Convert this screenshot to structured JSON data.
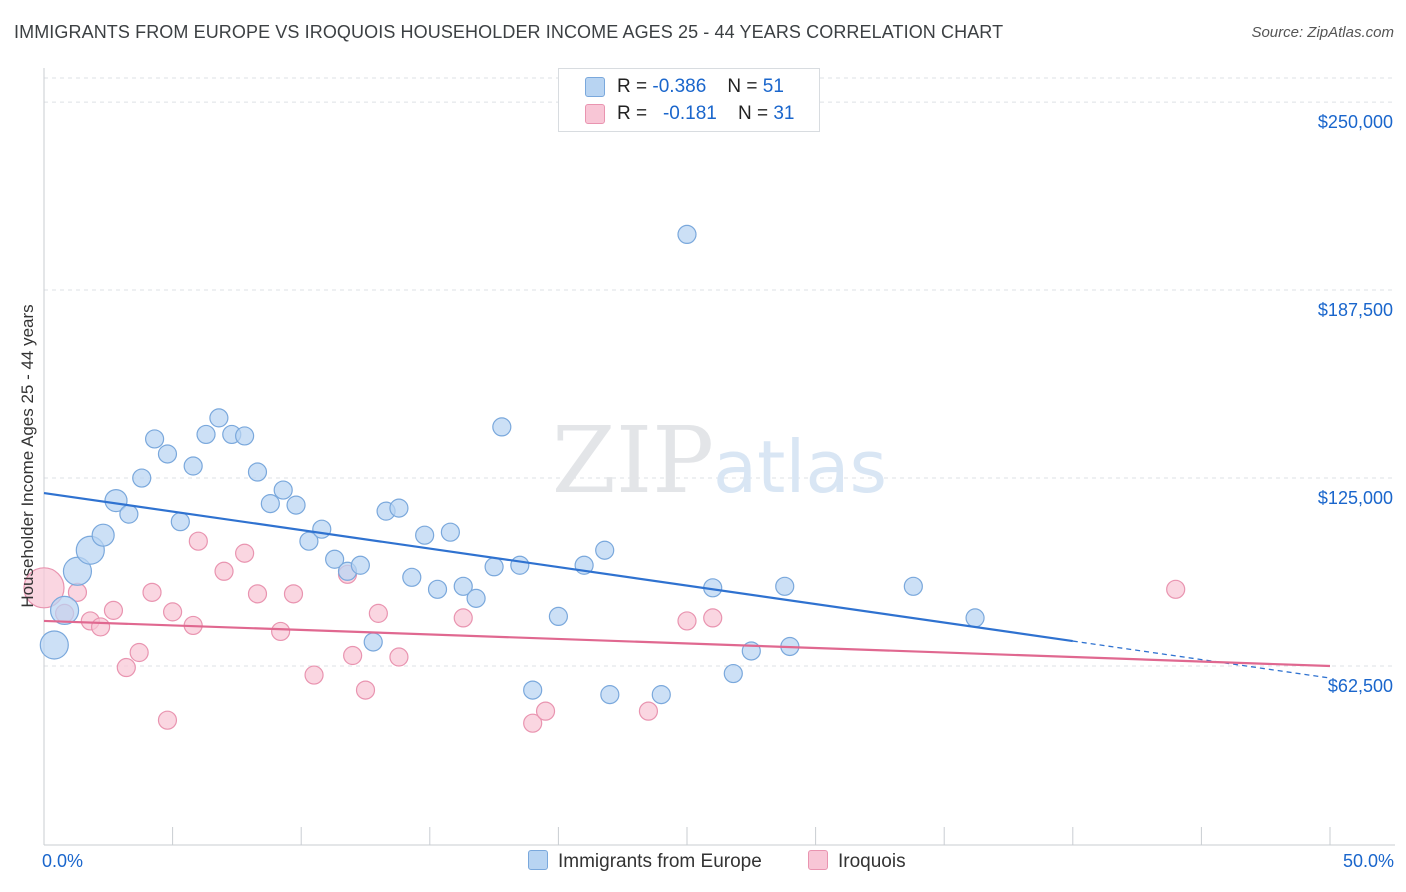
{
  "header": {
    "title": "IMMIGRANTS FROM EUROPE VS IROQUOIS HOUSEHOLDER INCOME AGES 25 - 44 YEARS CORRELATION CHART",
    "source": "Source: ZipAtlas.com"
  },
  "watermark": {
    "zip": "ZIP",
    "atlas": "atlas"
  },
  "stats_legend": {
    "rows": [
      {
        "r_label": "R =",
        "r_value": "-0.386",
        "n_label": "N =",
        "n_value": "51"
      },
      {
        "r_label": "R =",
        "r_value": "-0.181",
        "n_label": "N =",
        "n_value": "31"
      }
    ]
  },
  "colors": {
    "series1_fill": "#b8d4f2",
    "series1_stroke": "#7aa8dc",
    "series1_line": "#2f72d0",
    "series2_fill": "#f8c6d6",
    "series2_stroke": "#e994b0",
    "series2_line": "#e06890",
    "axis_text": "#1a66cc",
    "grid": "#dde1e5"
  },
  "chart_data": {
    "type": "scatter",
    "title": "IMMIGRANTS FROM EUROPE VS IROQUOIS HOUSEHOLDER INCOME AGES 25 - 44 YEARS CORRELATION CHART",
    "xlabel": "",
    "ylabel": "Householder Income Ages 25 - 44 years",
    "xlim": [
      0,
      50
    ],
    "ylim": [
      3000,
      258000
    ],
    "x_tick_labels": [
      "0.0%",
      "50.0%"
    ],
    "y_ticks": [
      62500,
      125000,
      187500,
      250000
    ],
    "y_tick_labels": [
      "$62,500",
      "$125,000",
      "$187,500",
      "$250,000"
    ],
    "grid": true,
    "legend_position": "bottom-center",
    "series": [
      {
        "name": "Immigrants from Europe",
        "points": [
          {
            "x": 0.4,
            "y": 69500,
            "s": 3
          },
          {
            "x": 0.8,
            "y": 81000,
            "s": 3
          },
          {
            "x": 1.3,
            "y": 94000,
            "s": 3
          },
          {
            "x": 1.8,
            "y": 101000,
            "s": 3
          },
          {
            "x": 2.3,
            "y": 106000,
            "s": 2
          },
          {
            "x": 2.8,
            "y": 117500,
            "s": 2
          },
          {
            "x": 3.3,
            "y": 113000,
            "s": 1
          },
          {
            "x": 3.8,
            "y": 125000,
            "s": 1
          },
          {
            "x": 4.3,
            "y": 138000,
            "s": 1
          },
          {
            "x": 4.8,
            "y": 133000,
            "s": 1
          },
          {
            "x": 5.3,
            "y": 110500,
            "s": 1
          },
          {
            "x": 5.8,
            "y": 129000,
            "s": 1
          },
          {
            "x": 6.3,
            "y": 139500,
            "s": 1
          },
          {
            "x": 6.8,
            "y": 145000,
            "s": 1
          },
          {
            "x": 7.3,
            "y": 139500,
            "s": 1
          },
          {
            "x": 7.8,
            "y": 139000,
            "s": 1
          },
          {
            "x": 8.3,
            "y": 127000,
            "s": 1
          },
          {
            "x": 8.8,
            "y": 116500,
            "s": 1
          },
          {
            "x": 9.3,
            "y": 121000,
            "s": 1
          },
          {
            "x": 9.8,
            "y": 116000,
            "s": 1
          },
          {
            "x": 10.3,
            "y": 104000,
            "s": 1
          },
          {
            "x": 10.8,
            "y": 108000,
            "s": 1
          },
          {
            "x": 11.3,
            "y": 98000,
            "s": 1
          },
          {
            "x": 11.8,
            "y": 94000,
            "s": 1
          },
          {
            "x": 12.3,
            "y": 96000,
            "s": 1
          },
          {
            "x": 12.8,
            "y": 70500,
            "s": 1
          },
          {
            "x": 13.3,
            "y": 114000,
            "s": 1
          },
          {
            "x": 13.8,
            "y": 115000,
            "s": 1
          },
          {
            "x": 14.3,
            "y": 92000,
            "s": 1
          },
          {
            "x": 14.8,
            "y": 106000,
            "s": 1
          },
          {
            "x": 15.3,
            "y": 88000,
            "s": 1
          },
          {
            "x": 15.8,
            "y": 107000,
            "s": 1
          },
          {
            "x": 16.3,
            "y": 89000,
            "s": 1
          },
          {
            "x": 16.8,
            "y": 85000,
            "s": 1
          },
          {
            "x": 17.5,
            "y": 95500,
            "s": 1
          },
          {
            "x": 17.8,
            "y": 142000,
            "s": 1
          },
          {
            "x": 18.5,
            "y": 96000,
            "s": 1
          },
          {
            "x": 19.0,
            "y": 54500,
            "s": 1
          },
          {
            "x": 20.0,
            "y": 79000,
            "s": 1
          },
          {
            "x": 21.0,
            "y": 96000,
            "s": 1
          },
          {
            "x": 21.8,
            "y": 101000,
            "s": 1
          },
          {
            "x": 22.0,
            "y": 53000,
            "s": 1
          },
          {
            "x": 24.0,
            "y": 53000,
            "s": 1
          },
          {
            "x": 25.0,
            "y": 206000,
            "s": 1
          },
          {
            "x": 26.0,
            "y": 88500,
            "s": 1
          },
          {
            "x": 26.8,
            "y": 60000,
            "s": 1
          },
          {
            "x": 27.5,
            "y": 67500,
            "s": 1
          },
          {
            "x": 28.8,
            "y": 89000,
            "s": 1
          },
          {
            "x": 29.0,
            "y": 69000,
            "s": 1
          },
          {
            "x": 33.8,
            "y": 89000,
            "s": 1
          },
          {
            "x": 36.2,
            "y": 78500,
            "s": 1
          }
        ],
        "trend": {
          "x": [
            0,
            40,
            50
          ],
          "y": [
            120000,
            71000,
            58500
          ],
          "solid_until": 40
        }
      },
      {
        "name": "Iroquois",
        "points": [
          {
            "x": 0.0,
            "y": 88500,
            "s": 4
          },
          {
            "x": 0.8,
            "y": 80000,
            "s": 1
          },
          {
            "x": 1.3,
            "y": 87000,
            "s": 1
          },
          {
            "x": 1.8,
            "y": 77500,
            "s": 1
          },
          {
            "x": 2.2,
            "y": 75500,
            "s": 1
          },
          {
            "x": 2.7,
            "y": 81000,
            "s": 1
          },
          {
            "x": 3.2,
            "y": 62000,
            "s": 1
          },
          {
            "x": 3.7,
            "y": 67000,
            "s": 1
          },
          {
            "x": 4.2,
            "y": 87000,
            "s": 1
          },
          {
            "x": 4.8,
            "y": 44500,
            "s": 1
          },
          {
            "x": 5.0,
            "y": 80500,
            "s": 1
          },
          {
            "x": 5.8,
            "y": 76000,
            "s": 1
          },
          {
            "x": 6.0,
            "y": 104000,
            "s": 1
          },
          {
            "x": 7.0,
            "y": 94000,
            "s": 1
          },
          {
            "x": 7.8,
            "y": 100000,
            "s": 1
          },
          {
            "x": 8.3,
            "y": 86500,
            "s": 1
          },
          {
            "x": 9.2,
            "y": 74000,
            "s": 1
          },
          {
            "x": 9.7,
            "y": 86500,
            "s": 1
          },
          {
            "x": 10.5,
            "y": 59500,
            "s": 1
          },
          {
            "x": 11.8,
            "y": 93000,
            "s": 1
          },
          {
            "x": 12.0,
            "y": 66000,
            "s": 1
          },
          {
            "x": 12.5,
            "y": 54500,
            "s": 1
          },
          {
            "x": 13.0,
            "y": 80000,
            "s": 1
          },
          {
            "x": 13.8,
            "y": 65500,
            "s": 1
          },
          {
            "x": 16.3,
            "y": 78500,
            "s": 1
          },
          {
            "x": 19.0,
            "y": 43500,
            "s": 1
          },
          {
            "x": 19.5,
            "y": 47500,
            "s": 1
          },
          {
            "x": 23.5,
            "y": 47500,
            "s": 1
          },
          {
            "x": 25.0,
            "y": 77500,
            "s": 1
          },
          {
            "x": 26.0,
            "y": 78500,
            "s": 1
          },
          {
            "x": 44.0,
            "y": 88000,
            "s": 1
          }
        ],
        "trend": {
          "x": [
            0,
            50
          ],
          "y": [
            77500,
            62500
          ],
          "solid_until": 50
        }
      }
    ]
  }
}
